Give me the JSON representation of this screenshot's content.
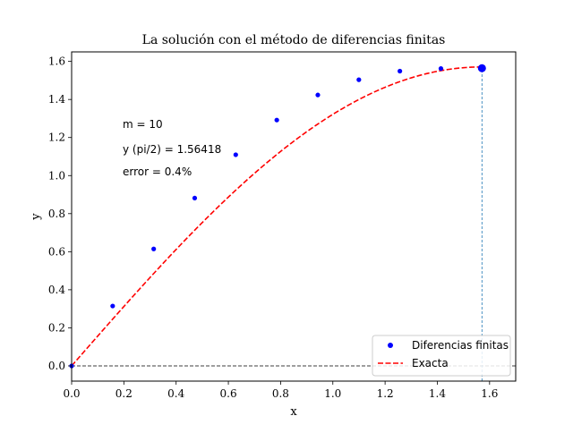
{
  "chart_data": {
    "type": "line",
    "title": "La solución con el método de diferencias finitas",
    "xlabel": "x",
    "ylabel": "y",
    "xlim": [
      0.0,
      1.7
    ],
    "ylim": [
      -0.08,
      1.65
    ],
    "xticks": [
      0.0,
      0.2,
      0.4,
      0.6,
      0.8,
      1.0,
      1.2,
      1.4,
      1.6
    ],
    "xtick_labels": [
      "0.0",
      "0.2",
      "0.4",
      "0.6",
      "0.8",
      "1.0",
      "1.2",
      "1.4",
      "1.6"
    ],
    "yticks": [
      0.0,
      0.2,
      0.4,
      0.6,
      0.8,
      1.0,
      1.2,
      1.4,
      1.6
    ],
    "ytick_labels": [
      "0.0",
      "0.2",
      "0.4",
      "0.6",
      "0.8",
      "1.0",
      "1.2",
      "1.4",
      "1.6"
    ],
    "series": [
      {
        "name": "Diferencias finitas",
        "style": "points",
        "color": "#0000ff",
        "x": [
          0.0,
          0.1571,
          0.3142,
          0.4712,
          0.6283,
          0.7854,
          0.9425,
          1.0996,
          1.2566,
          1.4137
        ],
        "y": [
          0.0,
          0.3146,
          0.6146,
          0.8818,
          1.1095,
          1.2918,
          1.4236,
          1.5037,
          1.5489,
          1.5624
        ]
      },
      {
        "name": "Exacta",
        "style": "dashed-line",
        "color": "#ff0000",
        "function": "x*(pi - x/2)... approximated by y = (pi/2)*sin(x)",
        "x_range": [
          0.0,
          1.5708
        ]
      }
    ],
    "highlight_point": {
      "x": 1.5708,
      "y": 1.56418,
      "color": "#0000ff"
    },
    "reference_lines": [
      {
        "orientation": "horizontal",
        "value": 0.0,
        "color": "#000000",
        "style": "dashed"
      },
      {
        "orientation": "vertical",
        "value": 1.5708,
        "color": "#1f77b4",
        "style": "dashed"
      }
    ],
    "annotations": [
      "m = 10",
      "y (pi/2) = 1.56418",
      "error = 0.4%"
    ],
    "legend": {
      "placement": "lower-right",
      "entries": [
        "Diferencias finitas",
        "Exacta"
      ]
    }
  }
}
